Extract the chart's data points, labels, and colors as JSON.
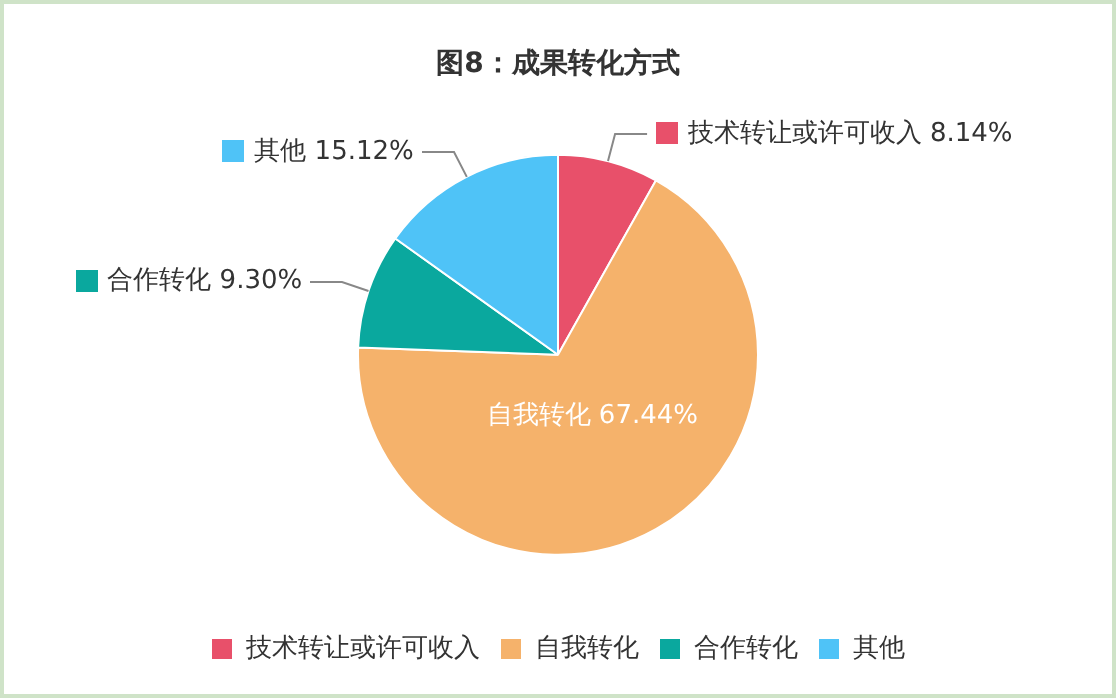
{
  "chart_data": {
    "type": "pie",
    "title": "图8：成果转化方式",
    "categories": [
      "技术转让或许可收入",
      "自我转化",
      "合作转化",
      "其他"
    ],
    "values": [
      8.14,
      67.44,
      9.3,
      15.12
    ],
    "value_labels": [
      "8.14%",
      "67.44%",
      "9.30%",
      "15.12%"
    ],
    "colors": [
      "#e8506a",
      "#f5b26b",
      "#0aa89e",
      "#4fc3f7"
    ],
    "legend": "bottom"
  }
}
